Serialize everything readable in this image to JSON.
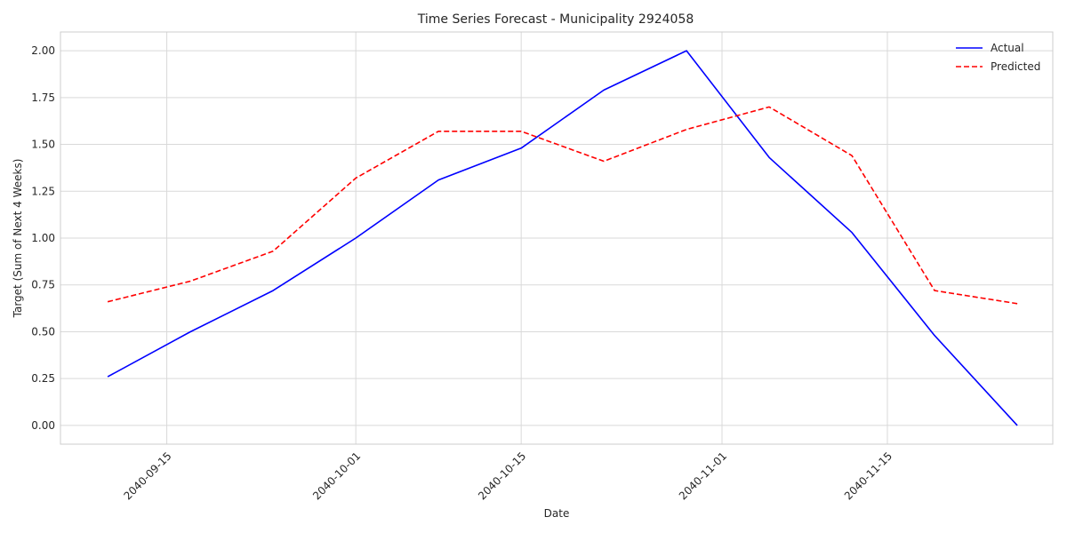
{
  "chart_data": {
    "type": "line",
    "title": "Time Series Forecast - Municipality 2924058",
    "xlabel": "Date",
    "ylabel": "Target (Sum of Next 4 Weeks)",
    "x": [
      "2040-09-10",
      "2040-09-17",
      "2040-09-24",
      "2040-10-01",
      "2040-10-08",
      "2040-10-15",
      "2040-10-22",
      "2040-10-29",
      "2040-11-05",
      "2040-11-12",
      "2040-11-19",
      "2040-11-26"
    ],
    "xlim": [
      "2040-09-06",
      "2040-11-29"
    ],
    "ylim": [
      -0.1,
      2.1
    ],
    "x_ticks": [
      "2040-09-15",
      "2040-10-01",
      "2040-10-15",
      "2040-11-01",
      "2040-11-15"
    ],
    "y_ticks": [
      0.0,
      0.25,
      0.5,
      0.75,
      1.0,
      1.25,
      1.5,
      1.75,
      2.0
    ],
    "y_tick_labels": [
      "0.00",
      "0.25",
      "0.50",
      "0.75",
      "1.00",
      "1.25",
      "1.50",
      "1.75",
      "2.00"
    ],
    "grid": true,
    "legend_position": "top-right",
    "series": [
      {
        "name": "Actual",
        "color": "#0000ff",
        "style": "solid",
        "values": [
          0.26,
          0.5,
          0.72,
          1.0,
          1.31,
          1.48,
          1.79,
          2.0,
          1.43,
          1.03,
          0.48,
          0.0
        ]
      },
      {
        "name": "Predicted",
        "color": "#ff0000",
        "style": "dashed",
        "values": [
          0.66,
          0.77,
          0.93,
          1.32,
          1.57,
          1.57,
          1.41,
          1.58,
          1.7,
          1.44,
          0.72,
          0.65
        ]
      }
    ]
  }
}
